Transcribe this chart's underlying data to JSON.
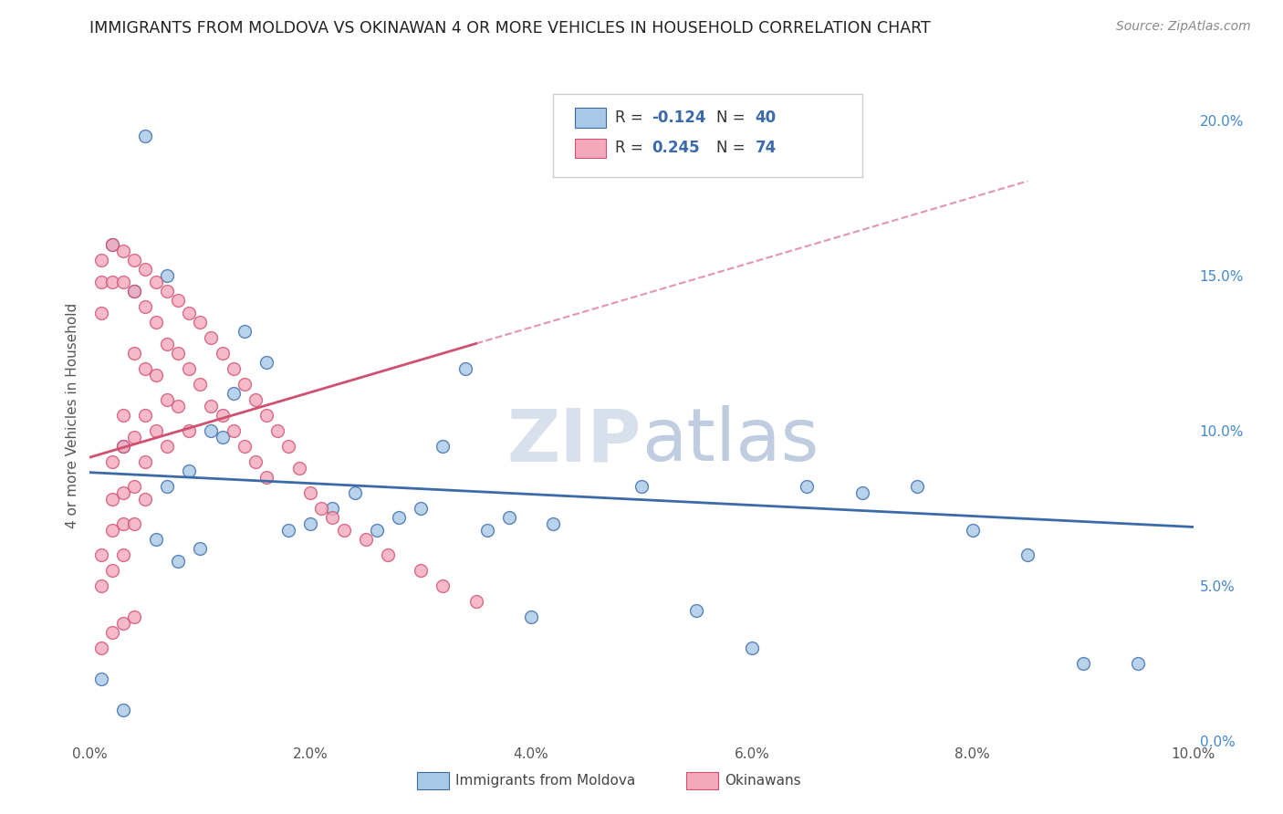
{
  "title": "IMMIGRANTS FROM MOLDOVA VS OKINAWAN 4 OR MORE VEHICLES IN HOUSEHOLD CORRELATION CHART",
  "source": "Source: ZipAtlas.com",
  "ylabel": "4 or more Vehicles in Household",
  "xlim": [
    0.0,
    0.1
  ],
  "ylim": [
    0.0,
    0.21
  ],
  "xticks": [
    0.0,
    0.02,
    0.04,
    0.06,
    0.08,
    0.1
  ],
  "xtick_labels": [
    "0.0%",
    "2.0%",
    "4.0%",
    "6.0%",
    "8.0%",
    "10.0%"
  ],
  "yticks_right": [
    0.0,
    0.05,
    0.1,
    0.15,
    0.2
  ],
  "ytick_labels_right": [
    "0.0%",
    "5.0%",
    "10.0%",
    "15.0%",
    "20.0%"
  ],
  "blue_R": -0.124,
  "blue_N": 40,
  "pink_R": 0.245,
  "pink_N": 74,
  "blue_color": "#a8c8e8",
  "pink_color": "#f4a8bc",
  "blue_line_color": "#3a6aaa",
  "pink_line_color": "#d05070",
  "ref_line_color": "#d0c8d8",
  "legend_label_blue": "Immigrants from Moldova",
  "legend_label_pink": "Okinawans",
  "blue_x": [
    0.001,
    0.002,
    0.003,
    0.004,
    0.005,
    0.006,
    0.007,
    0.008,
    0.009,
    0.01,
    0.011,
    0.012,
    0.013,
    0.014,
    0.016,
    0.018,
    0.02,
    0.022,
    0.024,
    0.026,
    0.028,
    0.03,
    0.032,
    0.034,
    0.036,
    0.038,
    0.04,
    0.042,
    0.05,
    0.055,
    0.06,
    0.065,
    0.07,
    0.075,
    0.08,
    0.085,
    0.09,
    0.095,
    0.003,
    0.007
  ],
  "blue_y": [
    0.02,
    0.16,
    0.095,
    0.145,
    0.195,
    0.065,
    0.082,
    0.058,
    0.087,
    0.062,
    0.1,
    0.098,
    0.112,
    0.132,
    0.122,
    0.068,
    0.07,
    0.075,
    0.08,
    0.068,
    0.072,
    0.075,
    0.095,
    0.12,
    0.068,
    0.072,
    0.04,
    0.07,
    0.082,
    0.042,
    0.03,
    0.082,
    0.08,
    0.082,
    0.068,
    0.06,
    0.025,
    0.025,
    0.01,
    0.15
  ],
  "pink_x": [
    0.001,
    0.001,
    0.001,
    0.001,
    0.001,
    0.002,
    0.002,
    0.002,
    0.002,
    0.002,
    0.002,
    0.003,
    0.003,
    0.003,
    0.003,
    0.003,
    0.003,
    0.003,
    0.004,
    0.004,
    0.004,
    0.004,
    0.004,
    0.004,
    0.005,
    0.005,
    0.005,
    0.005,
    0.005,
    0.005,
    0.006,
    0.006,
    0.006,
    0.006,
    0.007,
    0.007,
    0.007,
    0.007,
    0.008,
    0.008,
    0.008,
    0.009,
    0.009,
    0.009,
    0.01,
    0.01,
    0.011,
    0.011,
    0.012,
    0.012,
    0.013,
    0.013,
    0.014,
    0.014,
    0.015,
    0.015,
    0.016,
    0.016,
    0.017,
    0.018,
    0.019,
    0.02,
    0.021,
    0.022,
    0.023,
    0.025,
    0.027,
    0.03,
    0.032,
    0.035,
    0.001,
    0.002,
    0.003,
    0.004
  ],
  "pink_y": [
    0.155,
    0.148,
    0.138,
    0.06,
    0.05,
    0.16,
    0.148,
    0.09,
    0.078,
    0.068,
    0.055,
    0.158,
    0.148,
    0.105,
    0.095,
    0.08,
    0.07,
    0.06,
    0.155,
    0.145,
    0.125,
    0.098,
    0.082,
    0.07,
    0.152,
    0.14,
    0.12,
    0.105,
    0.09,
    0.078,
    0.148,
    0.135,
    0.118,
    0.1,
    0.145,
    0.128,
    0.11,
    0.095,
    0.142,
    0.125,
    0.108,
    0.138,
    0.12,
    0.1,
    0.135,
    0.115,
    0.13,
    0.108,
    0.125,
    0.105,
    0.12,
    0.1,
    0.115,
    0.095,
    0.11,
    0.09,
    0.105,
    0.085,
    0.1,
    0.095,
    0.088,
    0.08,
    0.075,
    0.072,
    0.068,
    0.065,
    0.06,
    0.055,
    0.05,
    0.045,
    0.03,
    0.035,
    0.038,
    0.04
  ]
}
